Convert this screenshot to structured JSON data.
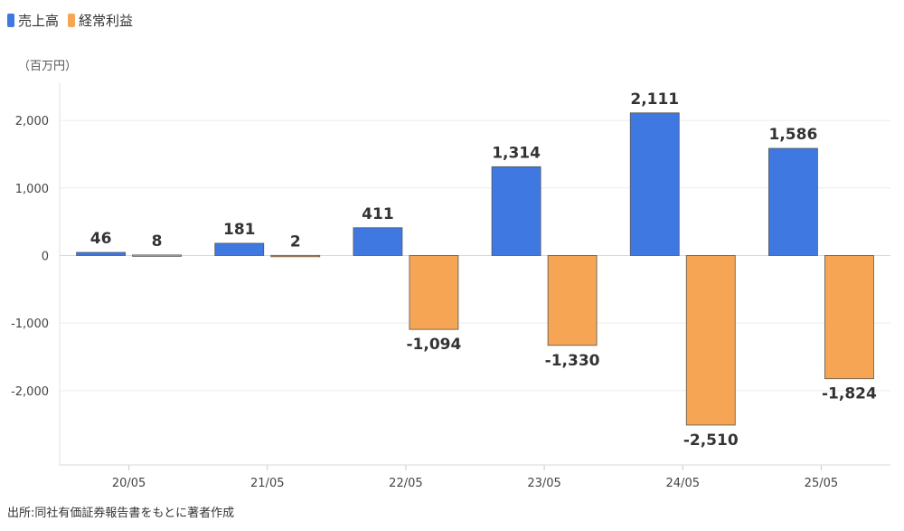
{
  "legend": {
    "items": [
      {
        "label": "売上高",
        "color": "#3f78e0"
      },
      {
        "label": "経常利益",
        "color": "#f5a554"
      }
    ]
  },
  "unit_label": "（百万円）",
  "source_note": "出所:同社有価証券報告書をもとに著者作成",
  "chart_data": {
    "type": "bar",
    "categories": [
      "20/05",
      "21/05",
      "22/05",
      "23/05",
      "24/05",
      "25/05"
    ],
    "series": [
      {
        "name": "売上高",
        "values": [
          46,
          181,
          411,
          1314,
          2111,
          1586
        ],
        "color": "#3f78e0"
      },
      {
        "name": "経常利益",
        "values": [
          8,
          2,
          -1094,
          -1330,
          -2510,
          -1824
        ],
        "color": "#f5a554"
      }
    ],
    "data_labels": [
      [
        "46",
        "181",
        "411",
        "1,314",
        "2,111",
        "1,586"
      ],
      [
        "8",
        "2",
        "-1,094",
        "-1,330",
        "-2,510",
        "-1,824"
      ]
    ],
    "yticks": [
      2000,
      1000,
      0,
      -1000,
      -2000
    ],
    "ytick_labels": [
      "2,000",
      "1,000",
      "0",
      "-1,000",
      "-2,000"
    ],
    "ylim": [
      -3100,
      2550
    ],
    "grid": true,
    "legend_position": "top-left"
  }
}
